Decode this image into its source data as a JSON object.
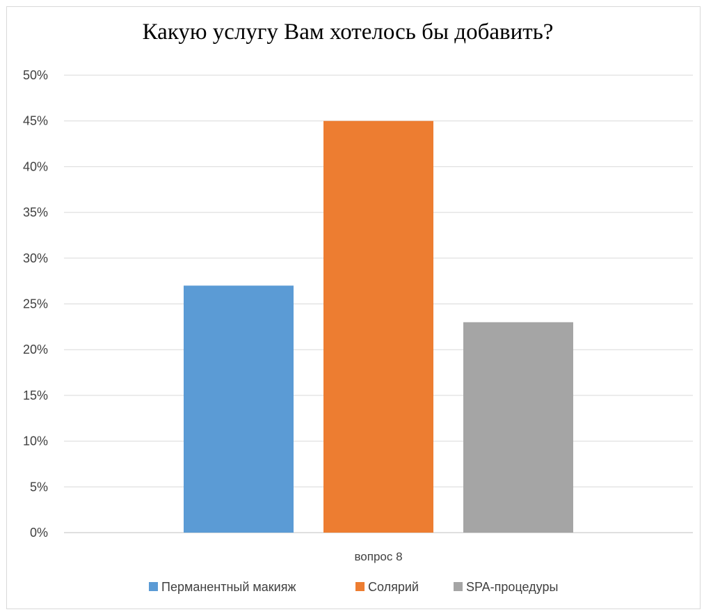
{
  "chart_data": {
    "type": "bar",
    "title": "Какую услугу Вам хотелось бы добавить?",
    "categories": [
      "вопрос 8"
    ],
    "series": [
      {
        "name": "Перманентный макияж",
        "values": [
          0.27
        ],
        "color": "#5b9bd5"
      },
      {
        "name": "Солярий",
        "values": [
          0.45
        ],
        "color": "#ed7d31"
      },
      {
        "name": "SPA-процедуры",
        "values": [
          0.23
        ],
        "color": "#a5a5a5"
      }
    ],
    "ylim": [
      0,
      0.5
    ],
    "y_ticks": [
      0,
      0.05,
      0.1,
      0.15,
      0.2,
      0.25,
      0.3,
      0.35,
      0.4,
      0.45,
      0.5
    ],
    "y_tick_labels": [
      "0%",
      "5%",
      "10%",
      "15%",
      "20%",
      "25%",
      "30%",
      "35%",
      "40%",
      "45%",
      "50%"
    ],
    "grid": true,
    "legend_position": "bottom"
  }
}
